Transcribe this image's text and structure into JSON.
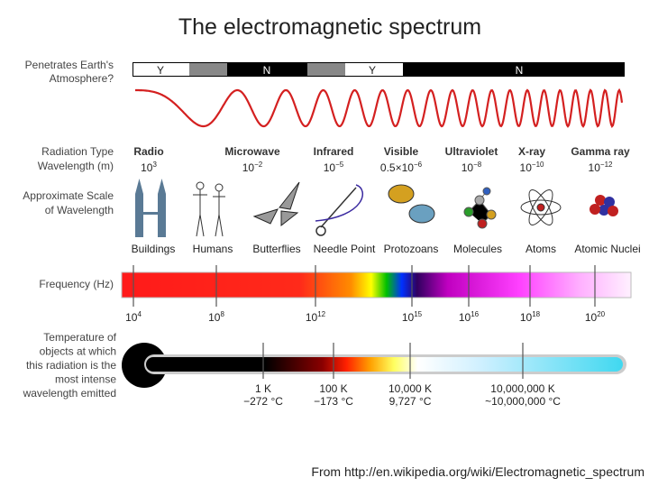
{
  "title": "The electromagnetic spectrum",
  "atmosphere": {
    "label": [
      "Penetrates Earth's",
      "Atmosphere?"
    ],
    "segments": [
      "Y",
      "N",
      "Y",
      "N"
    ]
  },
  "row_labels": {
    "radiation_type": "Radiation Type",
    "wavelength": "Wavelength (m)",
    "scale": [
      "Approximate Scale",
      "of Wavelength"
    ],
    "frequency": "Frequency (Hz)",
    "temperature": [
      "Temperature of",
      "objects at which",
      "this radiation is the",
      "most intense",
      "wavelength emitted"
    ]
  },
  "radiation_types": [
    {
      "name": "Radio",
      "wavelength": {
        "base": "10",
        "exp": "3"
      }
    },
    {
      "name": "Microwave",
      "wavelength": {
        "base": "10",
        "exp": "−2"
      }
    },
    {
      "name": "Infrared",
      "wavelength": {
        "base": "10",
        "exp": "−5"
      }
    },
    {
      "name": "Visible",
      "wavelength": {
        "base": "0.5×10",
        "exp": "−6"
      }
    },
    {
      "name": "Ultraviolet",
      "wavelength": {
        "base": "10",
        "exp": "−8"
      }
    },
    {
      "name": "X-ray",
      "wavelength": {
        "base": "10",
        "exp": "−10"
      }
    },
    {
      "name": "Gamma ray",
      "wavelength": {
        "base": "10",
        "exp": "−12"
      }
    }
  ],
  "scale_items": [
    "Buildings",
    "Humans",
    "Butterflies",
    "Needle Point",
    "Protozoans",
    "Molecules",
    "Atoms",
    "Atomic Nuclei"
  ],
  "frequency_ticks": [
    {
      "base": "10",
      "exp": "4"
    },
    {
      "base": "10",
      "exp": "8"
    },
    {
      "base": "10",
      "exp": "12"
    },
    {
      "base": "10",
      "exp": "15"
    },
    {
      "base": "10",
      "exp": "16"
    },
    {
      "base": "10",
      "exp": "18"
    },
    {
      "base": "10",
      "exp": "20"
    }
  ],
  "temperatures": [
    {
      "kelvin": "1 K",
      "celsius": "−272 °C"
    },
    {
      "kelvin": "100 K",
      "celsius": "−173 °C"
    },
    {
      "kelvin": "10,000 K",
      "celsius": "9,727 °C"
    },
    {
      "kelvin": "10,000,000 K",
      "celsius": "~10,000,000 °C"
    }
  ],
  "source": "From http://en.wikipedia.org/wiki/Electromagnetic_spectrum"
}
